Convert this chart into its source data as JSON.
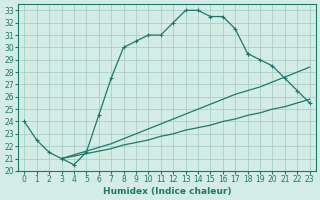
{
  "xlabel": "Humidex (Indice chaleur)",
  "bg_color": "#d4ece6",
  "grid_color": "#aacfc8",
  "line_color": "#1a7a6a",
  "xlim": [
    -0.5,
    23.5
  ],
  "ylim": [
    20,
    33.5
  ],
  "xticks": [
    0,
    1,
    2,
    3,
    4,
    5,
    6,
    7,
    8,
    9,
    10,
    11,
    12,
    13,
    14,
    15,
    16,
    17,
    18,
    19,
    20,
    21,
    22,
    23
  ],
  "yticks": [
    20,
    21,
    22,
    23,
    24,
    25,
    26,
    27,
    28,
    29,
    30,
    31,
    32,
    33
  ],
  "curve_main_x": [
    0,
    1,
    2,
    3,
    4,
    5,
    6,
    7,
    8,
    9,
    10,
    11,
    12,
    13,
    14,
    15,
    16,
    17,
    18
  ],
  "curve_main_y": [
    24.0,
    22.5,
    21.5,
    21.0,
    20.5,
    21.5,
    24.5,
    27.5,
    30.0,
    30.5,
    31.0,
    31.0,
    32.0,
    33.0,
    33.0,
    32.5,
    32.5,
    31.5,
    29.5
  ],
  "curve_tail1_x": [
    18,
    19,
    20,
    21,
    22,
    23
  ],
  "curve_tail1_y": [
    29.5,
    29.0,
    28.5,
    27.5,
    26.5,
    25.5
  ],
  "curve_diag1_x": [
    3,
    4,
    5,
    6,
    7,
    8,
    9,
    10,
    11,
    12,
    13,
    14,
    15,
    16,
    17,
    18,
    19,
    20,
    21,
    22,
    23
  ],
  "curve_diag1_y": [
    21.0,
    21.2,
    21.4,
    21.6,
    21.8,
    22.1,
    22.3,
    22.5,
    22.8,
    23.0,
    23.3,
    23.5,
    23.7,
    24.0,
    24.2,
    24.5,
    24.7,
    25.0,
    25.2,
    25.5,
    25.8
  ],
  "curve_diag2_x": [
    3,
    4,
    5,
    6,
    7,
    8,
    9,
    10,
    11,
    12,
    13,
    14,
    15,
    16,
    17,
    18,
    19,
    20,
    21,
    22,
    23
  ],
  "curve_diag2_y": [
    21.0,
    21.3,
    21.6,
    21.9,
    22.2,
    22.6,
    23.0,
    23.4,
    23.8,
    24.2,
    24.6,
    25.0,
    25.4,
    25.8,
    26.2,
    26.5,
    26.8,
    27.2,
    27.6,
    28.0,
    28.4
  ],
  "xlabel_fontsize": 6.5,
  "tick_fontsize": 5.5
}
